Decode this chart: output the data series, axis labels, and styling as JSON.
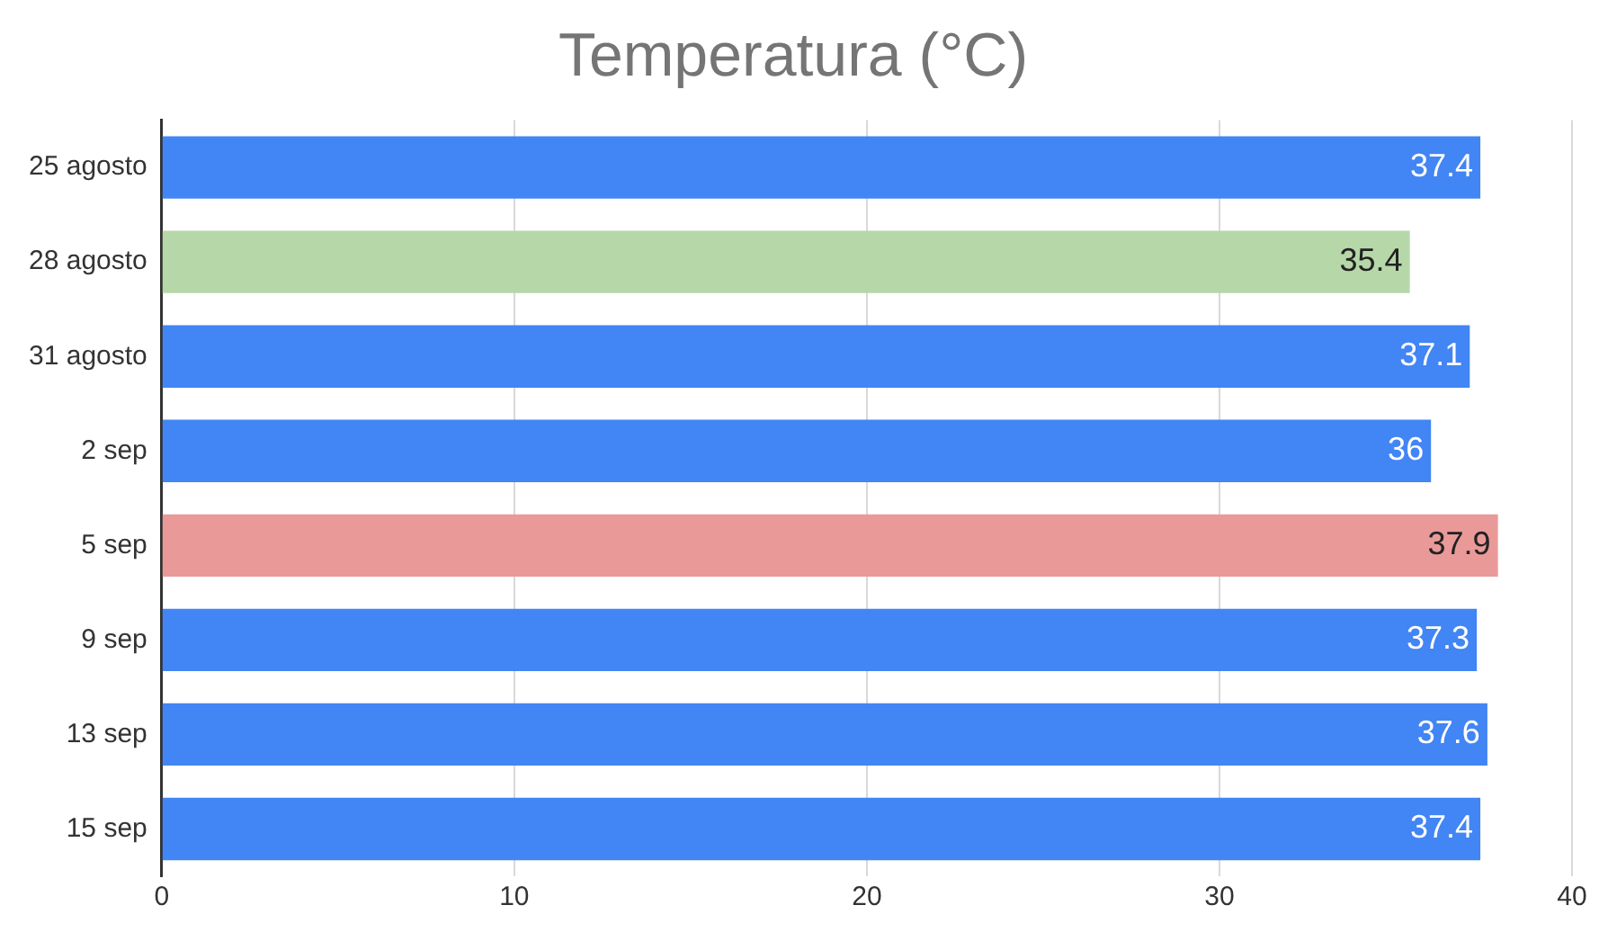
{
  "chart_data": {
    "type": "bar",
    "orientation": "horizontal",
    "title": "Temperatura (°C)",
    "categories": [
      "25 agosto",
      "28 agosto",
      "31 agosto",
      "2 sep",
      "5 sep",
      "9 sep",
      "13 sep",
      "15 sep"
    ],
    "values": [
      37.4,
      35.4,
      37.1,
      36,
      37.9,
      37.3,
      37.6,
      37.4
    ],
    "colors": [
      "#4285f4",
      "#b6d7a8",
      "#4285f4",
      "#4285f4",
      "#ea9999",
      "#4285f4",
      "#4285f4",
      "#4285f4"
    ],
    "xlim": [
      0,
      40
    ],
    "xticks": [
      0,
      10,
      20,
      30,
      40
    ],
    "grid": "x",
    "data_labels": true,
    "legend": false
  }
}
